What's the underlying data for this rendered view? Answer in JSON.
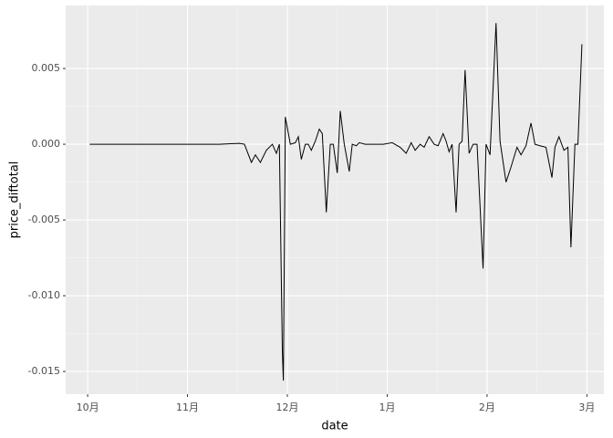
{
  "chart_data": {
    "type": "line",
    "x_label": "date",
    "y_label": "price_diftotal",
    "x": [
      0.02,
      0.49,
      0.59,
      0.95,
      1.32,
      1.52,
      1.57,
      1.64,
      1.68,
      1.73,
      1.79,
      1.85,
      1.89,
      1.92,
      1.95,
      1.96,
      1.98,
      2.03,
      2.08,
      2.11,
      2.14,
      2.18,
      2.21,
      2.24,
      2.28,
      2.32,
      2.35,
      2.39,
      2.43,
      2.46,
      2.5,
      2.53,
      2.57,
      2.62,
      2.65,
      2.69,
      2.72,
      2.78,
      2.87,
      2.96,
      3.05,
      3.13,
      3.19,
      3.24,
      3.28,
      3.33,
      3.37,
      3.42,
      3.47,
      3.51,
      3.56,
      3.59,
      3.62,
      3.65,
      3.69,
      3.72,
      3.75,
      3.78,
      3.82,
      3.86,
      3.9,
      3.96,
      3.99,
      4.03,
      4.09,
      4.13,
      4.19,
      4.24,
      4.3,
      4.34,
      4.39,
      4.44,
      4.48,
      4.53,
      4.59,
      4.65,
      4.68,
      4.72,
      4.77,
      4.81,
      4.84,
      4.88,
      4.91,
      4.95
    ],
    "values": [
      0,
      0,
      0,
      0,
      0,
      6e-05,
      0,
      -0.0012,
      -0.0007,
      -0.0012,
      -0.0004,
      0,
      -0.0006,
      0,
      -0.0137,
      -0.0156,
      0.0018,
      0,
      0.0001,
      0.0005,
      -0.001,
      0,
      0,
      -0.0004,
      0.0002,
      0.001,
      0.0007,
      -0.0045,
      0,
      0,
      -0.0019,
      0.0022,
      0,
      -0.0018,
      0,
      -0.0001,
      0.0001,
      0,
      0,
      0,
      0.0001,
      -0.0002,
      -0.0006,
      0.0001,
      -0.0004,
      0,
      -0.0002,
      0.0005,
      0,
      -0.0001,
      0.0007,
      0.0002,
      -0.0005,
      0,
      -0.0045,
      0,
      0.0002,
      0.0049,
      -0.0006,
      0,
      0,
      -0.0082,
      0,
      -0.0007,
      0.008,
      0.0002,
      -0.0025,
      -0.0015,
      -0.0002,
      -0.0007,
      -0.0001,
      0.0014,
      0,
      -0.0001,
      -0.0002,
      -0.0022,
      -0.0002,
      0.0005,
      -0.0004,
      -0.0002,
      -0.0068,
      0,
      0,
      0.0066
    ],
    "color": "#000000",
    "xlim": [
      -0.22,
      5.17
    ],
    "xticks": [
      {
        "value": 0,
        "label": "10月"
      },
      {
        "value": 1,
        "label": "11月"
      },
      {
        "value": 2,
        "label": "12月"
      },
      {
        "value": 3,
        "label": "1月"
      },
      {
        "value": 4,
        "label": "2月"
      },
      {
        "value": 5,
        "label": "3月"
      }
    ],
    "ylim": [
      -0.0165,
      0.00916
    ],
    "yticks": [
      {
        "value": -0.015,
        "label": "-0.015"
      },
      {
        "value": -0.01,
        "label": "-0.010"
      },
      -0.005,
      {
        "value": 0,
        "label": "0.000"
      },
      0.005
    ],
    "grid": true
  }
}
